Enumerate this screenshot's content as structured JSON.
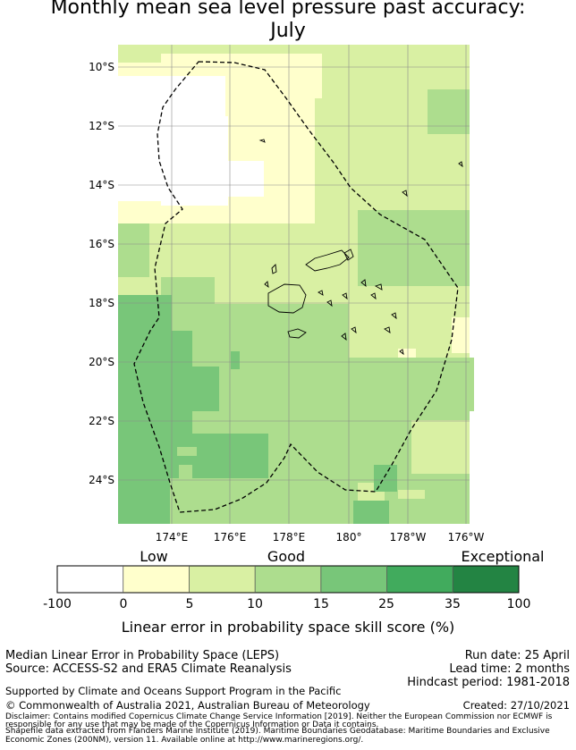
{
  "title": {
    "line1": "Monthly mean sea level pressure past accuracy:",
    "line2": "July"
  },
  "map": {
    "lat_labels": [
      "10°S",
      "12°S",
      "14°S",
      "16°S",
      "18°S",
      "20°S",
      "22°S",
      "24°S"
    ],
    "lon_labels": [
      "174°E",
      "176°E",
      "178°E",
      "180°",
      "178°W",
      "176°W"
    ],
    "colors": {
      "white": "#ffffff",
      "cream": "#ffffcc",
      "light_green": "#d9f0a3",
      "mid_green": "#addd8e",
      "green": "#78c679",
      "strong_green": "#41ab5d",
      "dark_green": "#238443"
    }
  },
  "colorbar": {
    "categories": [
      "Low",
      "Good",
      "Exceptional"
    ],
    "ticks": [
      "-100",
      "0",
      "5",
      "10",
      "15",
      "25",
      "35",
      "100"
    ],
    "colors": [
      "#ffffff",
      "#ffffcc",
      "#d9f0a3",
      "#addd8e",
      "#78c679",
      "#41ab5d",
      "#238443"
    ],
    "label": "Linear error in probability space skill score (%)"
  },
  "footer": {
    "method": "Median Linear Error in Probability Space (LEPS)",
    "source": "Source: ACCESS-S2 and ERA5 Climate Reanalysis",
    "run_date": "Run date: 25 April",
    "lead_time": "Lead time: 2 months",
    "hindcast": "Hindcast period: 1981-2018",
    "support": "Supported by Climate and Oceans Support Program in the Pacific",
    "copyright": "© Commonwealth of Australia 2021, Australian Bureau of Meteorology",
    "created": "Created: 27/10/2021",
    "disclaimer_1": "Disclaimer: Contains modified Copernicus Climate Change Service Information [2019]. Neither the European Commission nor ECMWF is",
    "disclaimer_2": "responsible for any use that may be made of the Copernicus Information or Data it contains.",
    "shapefile_1": "Shapefile data extracted from Flanders Marine Institute (2019). Maritime Boundaries Geodatabase: Maritime Boundaries and Exclusive",
    "shapefile_2": "Economic Zones (200NM), version 11. Available online at http://www.marineregions.org/."
  }
}
